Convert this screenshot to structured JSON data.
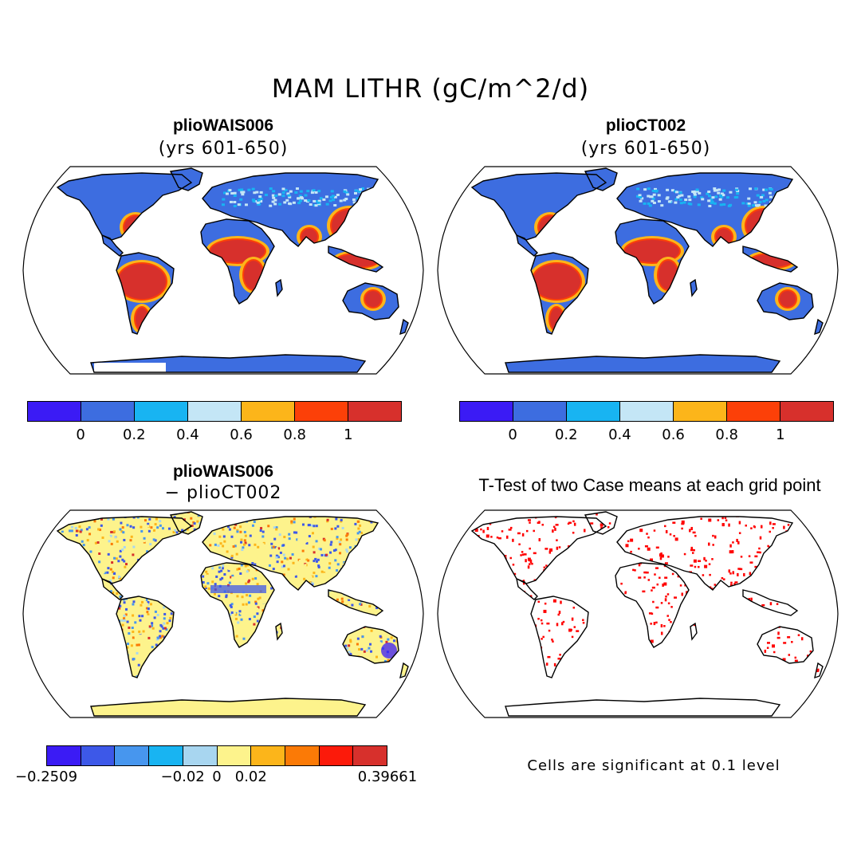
{
  "figure_title": "MAM LITHR (gC/m^2/d)",
  "panels": {
    "top_left": {
      "title": "plioWAIS006",
      "subtitle": "(yrs 601-650)"
    },
    "top_right": {
      "title": "plioCT002",
      "subtitle": "(yrs 601-650)"
    },
    "bottom_left": {
      "title": "plioWAIS006",
      "subtitle": "− plioCT002"
    },
    "bottom_right": {
      "title": "T-Test of two Case means at each grid point",
      "note": "Cells are significant at 0.1 level"
    }
  },
  "colorbar_top": {
    "colors": [
      "#3b1bf5",
      "#3d6de0",
      "#18b4f2",
      "#c4e6f6",
      "#fcb51a",
      "#fc4008",
      "#d7302c"
    ],
    "tick_labels": [
      "0",
      "0.2",
      "0.4",
      "0.6",
      "0.8",
      "1"
    ]
  },
  "colorbar_diff": {
    "colors": [
      "#3b1bf5",
      "#3d58e8",
      "#4796ee",
      "#18b4f2",
      "#a8d6f0",
      "#fdf38c",
      "#fcb51a",
      "#fb7a06",
      "#fc1a0a",
      "#d7302c"
    ],
    "tick_labels": [
      "−0.2509",
      "−0.02",
      "0",
      "0.02",
      "0.39661"
    ]
  },
  "map_colors": {
    "land_low": "#3d6de0",
    "land_high": "#d7302c",
    "land_mid": "#fc4008",
    "land_orange": "#fcb51a",
    "land_light": "#c4e6f6",
    "diff_base": "#fdf38c",
    "signif": "#ff0000"
  }
}
